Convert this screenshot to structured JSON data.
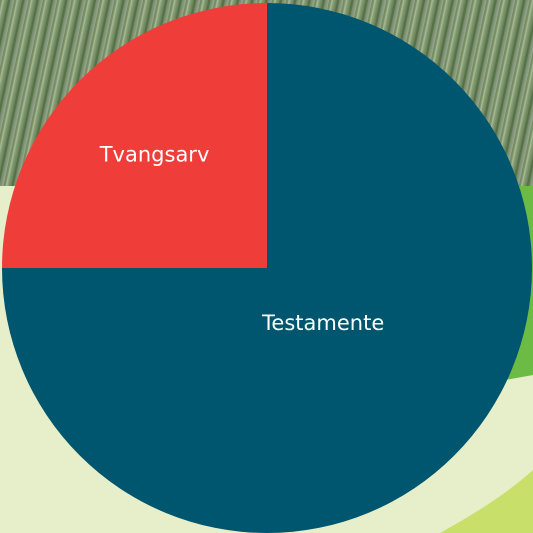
{
  "chart_data": {
    "type": "pie",
    "categories": [
      "Testamente",
      "Tvangsarv"
    ],
    "values": [
      75,
      25
    ],
    "colors": [
      "#00566e",
      "#ef3e3a"
    ]
  }
}
